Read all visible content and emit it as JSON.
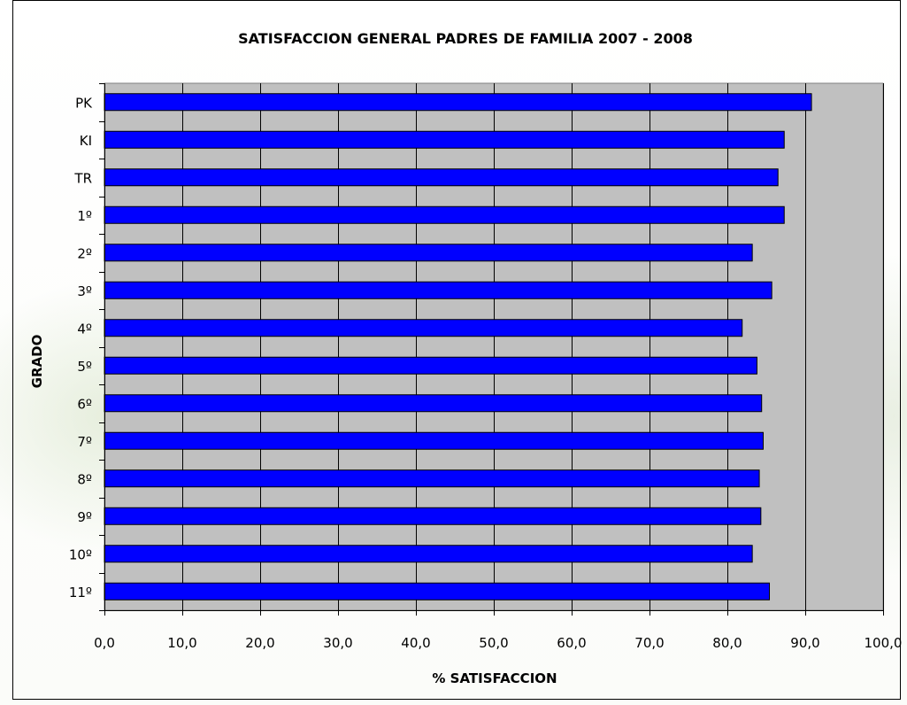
{
  "chart_data": {
    "type": "bar",
    "orientation": "horizontal",
    "title": "SATISFACCION GENERAL PADRES DE FAMILIA 2007 - 2008",
    "xlabel": "% SATISFACCION",
    "ylabel": "GRADO",
    "categories": [
      "PK",
      "KI",
      "TR",
      "1º",
      "2º",
      "3º",
      "4º",
      "5º",
      "6º",
      "7º",
      "8º",
      "9º",
      "10º",
      "11º"
    ],
    "values": [
      90.8,
      87.3,
      86.5,
      87.3,
      83.2,
      85.7,
      81.9,
      83.8,
      84.4,
      84.6,
      84.1,
      84.3,
      83.2,
      85.4
    ],
    "xlim": [
      0,
      100
    ],
    "xticks": [
      "0,0",
      "10,0",
      "20,0",
      "30,0",
      "40,0",
      "50,0",
      "60,0",
      "70,0",
      "80,0",
      "90,0",
      "100,0"
    ],
    "grid": "vertical",
    "legend": "none",
    "colors": {
      "bar": "#0000ff",
      "bar_edge": "#000000",
      "plot_background": "#c0c0c0",
      "gridline": "#000000"
    }
  }
}
